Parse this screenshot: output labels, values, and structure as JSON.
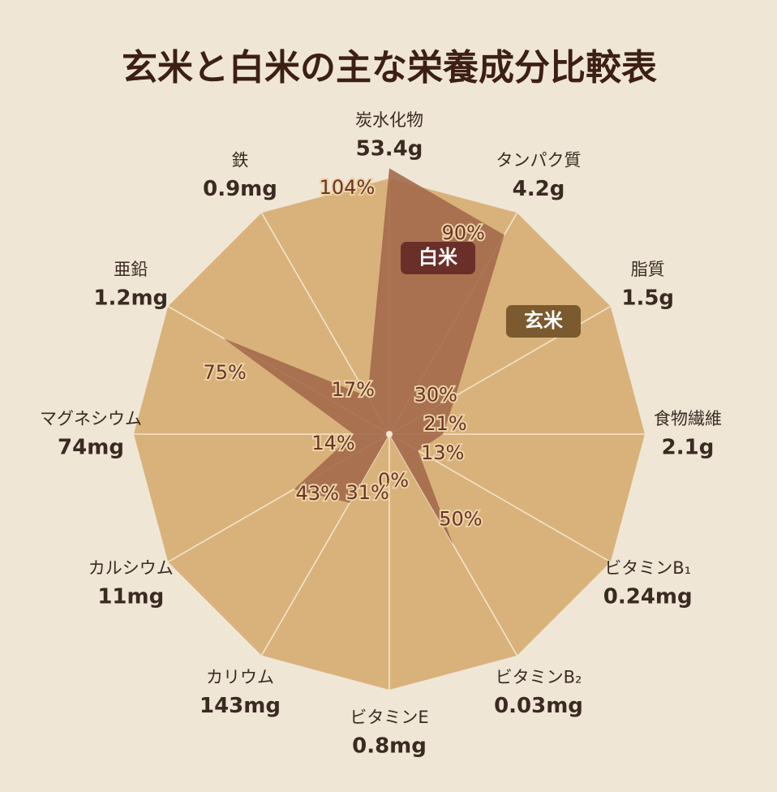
{
  "chart_data": {
    "type": "radar",
    "title": "玄米と白米の主な栄養成分比較表",
    "categories": [
      "炭水化物",
      "タンパク質",
      "脂質",
      "食物繊維",
      "ビタミンB₁",
      "ビタミンB₂",
      "ビタミンE",
      "カリウム",
      "カルシウム",
      "マグネシウム",
      "亜鉛",
      "鉄"
    ],
    "amounts": [
      "53.4g",
      "4.2g",
      "1.5g",
      "2.1g",
      "0.24mg",
      "0.03mg",
      "0.8mg",
      "143mg",
      "11mg",
      "74mg",
      "1.2mg",
      "0.9mg"
    ],
    "rlim": [
      0,
      100
    ],
    "series": [
      {
        "name": "玄米",
        "color": "#d9b27b",
        "values": [
          100,
          100,
          100,
          100,
          100,
          100,
          100,
          100,
          100,
          100,
          100,
          100
        ]
      },
      {
        "name": "白米",
        "color": "#a2684a",
        "values": [
          104,
          90,
          30,
          21,
          13,
          50,
          0,
          31,
          43,
          14,
          75,
          17
        ],
        "value_labels": [
          "104%",
          "90%",
          "30%",
          "21%",
          "13%",
          "50%",
          "0%",
          "31%",
          "43%",
          "14%",
          "75%",
          "17%"
        ]
      }
    ]
  }
}
